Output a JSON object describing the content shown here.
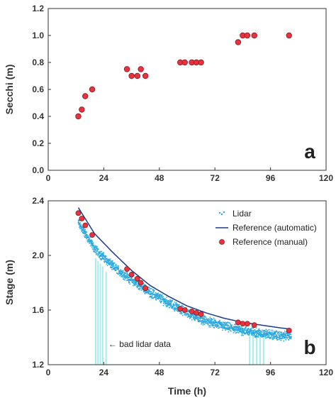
{
  "colors": {
    "marker_fill": "#e8333f",
    "marker_edge": "#8a1a22",
    "lidar": "#29a8e0",
    "bad_lidar": "#a8ecec",
    "reference_line": "#1a3a8c",
    "axis": "#333333"
  },
  "chart_data": [
    {
      "type": "scatter",
      "panel_label": "a",
      "xlabel": "",
      "ylabel": "Secchi (m)",
      "xlim": [
        0,
        120
      ],
      "ylim": [
        0.0,
        1.2
      ],
      "xticks": [
        0,
        24,
        48,
        72,
        96,
        120
      ],
      "yticks": [
        0.0,
        0.2,
        0.4,
        0.6,
        0.8,
        1.0,
        1.2
      ],
      "ytick_labels": [
        "0.0",
        "0.2",
        "0.4",
        "0.6",
        "0.8",
        "1.0",
        "1.2"
      ],
      "series": [
        {
          "points": [
            [
              13,
              0.4
            ],
            [
              14.5,
              0.45
            ],
            [
              16,
              0.55
            ],
            [
              19,
              0.6
            ],
            [
              34,
              0.75
            ],
            [
              36,
              0.7
            ],
            [
              38.5,
              0.7
            ],
            [
              40,
              0.75
            ],
            [
              42,
              0.7
            ],
            [
              57,
              0.8
            ],
            [
              59,
              0.8
            ],
            [
              62,
              0.8
            ],
            [
              64,
              0.8
            ],
            [
              66,
              0.8
            ],
            [
              82,
              0.95
            ],
            [
              84,
              1.0
            ],
            [
              86,
              1.0
            ],
            [
              89,
              1.0
            ],
            [
              104,
              1.0
            ]
          ]
        }
      ]
    },
    {
      "type": "line",
      "panel_label": "b",
      "xlabel": "Time (h)",
      "ylabel": "Stage (m)",
      "xlim": [
        0,
        120
      ],
      "ylim": [
        1.2,
        2.4
      ],
      "xticks": [
        0,
        24,
        48,
        72,
        96,
        120
      ],
      "yticks": [
        1.2,
        1.6,
        2.0,
        2.4
      ],
      "ytick_labels": [
        "1.2",
        "1.6",
        "2.0",
        "2.4"
      ],
      "legend_position": "top-right",
      "series": [
        {
          "name": "Lidar",
          "kind": "noisy-scatter",
          "x": [
            13,
            20,
            28,
            36,
            44,
            52,
            60,
            68,
            76,
            84,
            92,
            100,
            105
          ],
          "y": [
            2.24,
            2.05,
            1.92,
            1.82,
            1.73,
            1.65,
            1.58,
            1.52,
            1.48,
            1.45,
            1.43,
            1.41,
            1.41
          ]
        },
        {
          "name": "Reference (automatic)",
          "kind": "line",
          "x": [
            13,
            20,
            28,
            36,
            44,
            52,
            60,
            68,
            76,
            84,
            92,
            100,
            105
          ],
          "y": [
            2.35,
            2.16,
            2.02,
            1.89,
            1.78,
            1.7,
            1.63,
            1.58,
            1.54,
            1.51,
            1.49,
            1.47,
            1.46
          ]
        },
        {
          "name": "Reference (manual)",
          "kind": "markers",
          "x": [
            13,
            14.5,
            16,
            19,
            34,
            36,
            38.5,
            40,
            42,
            57,
            59,
            62,
            64,
            66,
            82,
            84,
            86,
            89,
            104
          ],
          "y": [
            2.31,
            2.27,
            2.22,
            2.15,
            1.9,
            1.86,
            1.83,
            1.8,
            1.76,
            1.61,
            1.6,
            1.59,
            1.58,
            1.57,
            1.51,
            1.5,
            1.5,
            1.49,
            1.45
          ]
        }
      ],
      "bad_lidar_bars": [
        {
          "x": 20.5,
          "y_top": 1.98
        },
        {
          "x": 21.5,
          "y_top": 1.96
        },
        {
          "x": 22.5,
          "y_top": 1.94
        },
        {
          "x": 23.5,
          "y_top": 1.92
        },
        {
          "x": 25,
          "y_top": 1.88
        },
        {
          "x": 87,
          "y_top": 1.45
        },
        {
          "x": 88.5,
          "y_top": 1.45
        },
        {
          "x": 90,
          "y_top": 1.44
        },
        {
          "x": 91.5,
          "y_top": 1.44
        },
        {
          "x": 93,
          "y_top": 1.43
        }
      ],
      "annotation": {
        "text": "← bad lidar data",
        "x": 26,
        "y": 1.33
      }
    }
  ]
}
